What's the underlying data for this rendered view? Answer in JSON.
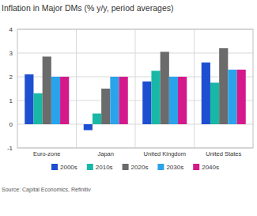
{
  "chart_data": {
    "type": "bar",
    "title": "Inflation in Major DMs (% y/y, period averages)",
    "source": "Source: Capital Economics, Refinitiv",
    "categories": [
      "Euro-zone",
      "Japan",
      "United Kingdom",
      "United States"
    ],
    "series": [
      {
        "name": "2000s",
        "color": "#1f4fd1",
        "values": [
          2.1,
          -0.25,
          1.8,
          2.6
        ]
      },
      {
        "name": "2010s",
        "color": "#19b8a6",
        "values": [
          1.3,
          0.45,
          2.25,
          1.75
        ]
      },
      {
        "name": "2020s",
        "color": "#6b6b6b",
        "values": [
          2.85,
          1.5,
          3.05,
          3.2
        ]
      },
      {
        "name": "2030s",
        "color": "#2aa3ea",
        "values": [
          2.0,
          2.0,
          2.0,
          2.3
        ]
      },
      {
        "name": "2040s",
        "color": "#d4198b",
        "values": [
          2.0,
          2.0,
          2.0,
          2.3
        ]
      }
    ],
    "ylim": [
      -1,
      4
    ],
    "yticks": [
      -1,
      0,
      1,
      2,
      3,
      4
    ],
    "grid": true,
    "legend": "bottom"
  }
}
